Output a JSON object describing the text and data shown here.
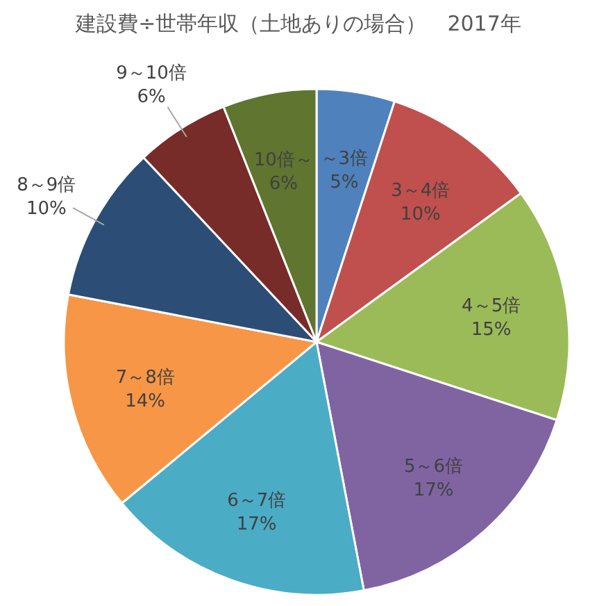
{
  "chart_data": {
    "type": "pie",
    "title": "建設費÷世帯年収（土地ありの場合）　2017年",
    "categories": [
      "～3倍",
      "3～4倍",
      "4～5倍",
      "5～6倍",
      "6～7倍",
      "7～8倍",
      "8～9倍",
      "9～10倍",
      "10倍～"
    ],
    "values": [
      5,
      10,
      15,
      17,
      17,
      14,
      10,
      6,
      6
    ],
    "value_labels": [
      "5%",
      "10%",
      "15%",
      "17%",
      "17%",
      "14%",
      "10%",
      "6%",
      "6%"
    ],
    "colors": [
      "#4f81bd",
      "#c0504d",
      "#9bbb59",
      "#8064a2",
      "#4bacc6",
      "#f79646",
      "#2c4d75",
      "#772c2a",
      "#5f7530"
    ]
  }
}
